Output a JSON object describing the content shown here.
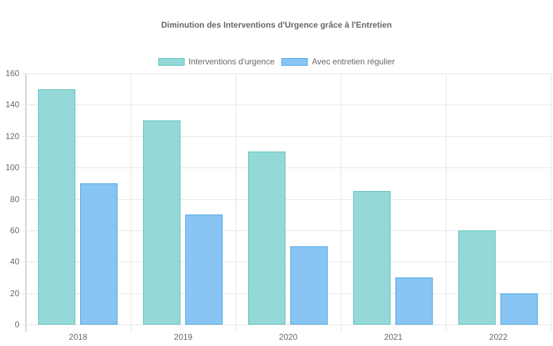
{
  "chart_data": {
    "type": "bar",
    "title": "Diminution des Interventions d'Urgence grâce à l'Entretien",
    "xlabel": "",
    "ylabel": "",
    "categories": [
      "2018",
      "2019",
      "2020",
      "2021",
      "2022"
    ],
    "series": [
      {
        "name": "Interventions d'urgence",
        "values": [
          150,
          130,
          110,
          85,
          60
        ],
        "color": "#94d9d7",
        "border": "#5cc3bf"
      },
      {
        "name": "Avec entretien régulier",
        "values": [
          90,
          70,
          50,
          30,
          20
        ],
        "color": "#88c5f4",
        "border": "#4aa3df"
      }
    ],
    "ylim": [
      0,
      160
    ],
    "yticks": [
      "0",
      "20",
      "40",
      "60",
      "80",
      "100",
      "120",
      "140",
      "160"
    ],
    "grid": true,
    "legend_position": "top"
  }
}
